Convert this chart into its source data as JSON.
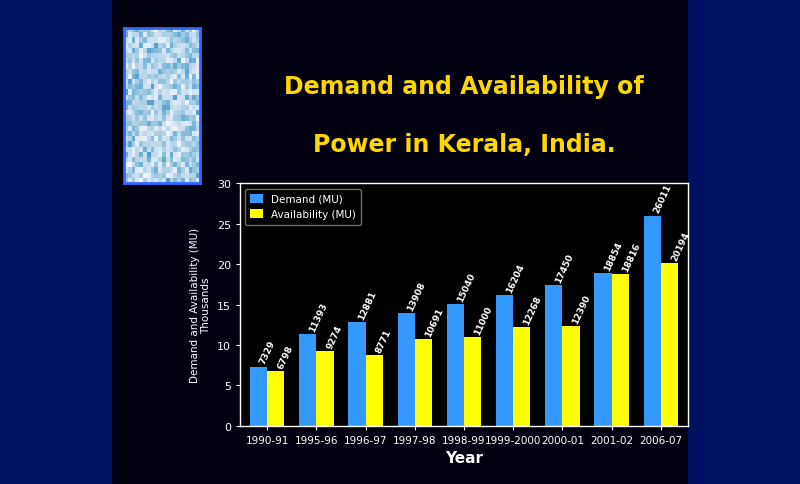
{
  "title_line1": "Demand and Availability of",
  "title_line2": "Power in Kerala, India.",
  "title_color": "#FFD700",
  "background_color": "#000010",
  "plot_background": "#000000",
  "years": [
    "1990-91",
    "1995-96",
    "1996-97",
    "1997-98",
    "1998-99",
    "1999-2000",
    "2000-01",
    "2001-02",
    "2006-07"
  ],
  "demand": [
    7329,
    11393,
    12881,
    13908,
    15040,
    16204,
    17450,
    18854,
    26011
  ],
  "availability": [
    6798,
    9274,
    8771,
    10691,
    11000,
    12268,
    12390,
    18816,
    20194
  ],
  "demand_color": "#3399FF",
  "availability_color": "#FFFF00",
  "ylabel_line1": "Demand and Availability (MU)",
  "ylabel_line2": "Thousands",
  "xlabel": "Year",
  "ylim": [
    0,
    30
  ],
  "yticks": [
    0,
    5,
    10,
    15,
    20,
    25,
    30
  ],
  "legend_demand": "Demand (MU)",
  "legend_availability": "Availability (MU)",
  "bar_label_color": "#FFFFFF",
  "bar_label_fontsize": 6.5,
  "axis_label_color": "#FFFFFF",
  "tick_color": "#FFFFFF",
  "legend_text_color": "#FFFFFF",
  "bar_width": 0.35,
  "sidebar_color_left": "#001060",
  "sidebar_color_right": "#001060"
}
